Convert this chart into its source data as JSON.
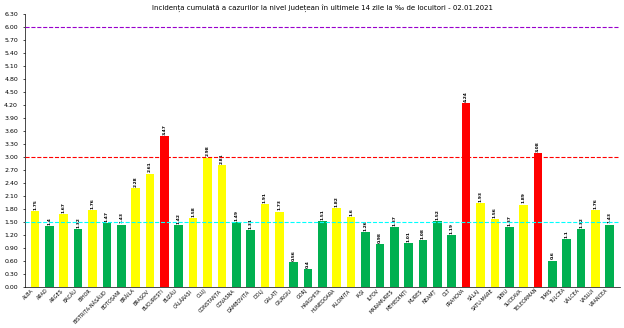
{
  "title": "Incidența cumulată a cazurilor la nivel județean în ultimele 14 zile la ‰ de locuitori - 02.01.2021",
  "categories": [
    "ALBA",
    "ARAD",
    "ARGEȘ",
    "BACĂU",
    "BIHOR",
    "BISTRIȚA-NĂSĂUD",
    "BOTOȘANI",
    "BRĂILA",
    "BRAȘOV",
    "BUCUREȘTI",
    "BUZĂU",
    "CĂLĂRAȘI",
    "CLUJ",
    "CONSTANȚA",
    "COVASNA",
    "DÂMBOVIȚA",
    "DOLJ",
    "GALAȚI",
    "GIURGIU",
    "GORJ",
    "HARGHITA",
    "HUNEDOARA",
    "IALOMIȚA",
    "IAȘI",
    "ILFOV",
    "MARAMUREȘ",
    "MEHEDINȚI",
    "MUREȘ",
    "NEAMȚ",
    "OLT",
    "PRAHOVA",
    "SĂLAJ",
    "SATU-MARE",
    "SIBIU",
    "SUCEAVA",
    "TELEORMAN",
    "TIMIȘ",
    "TULCEA",
    "VÂLCEA",
    "VASLUI",
    "VRANCEA"
  ],
  "bar_colors": [
    "yellow",
    "green",
    "yellow",
    "green",
    "yellow",
    "green",
    "green",
    "yellow",
    "yellow",
    "red",
    "green",
    "yellow",
    "yellow",
    "yellow",
    "green",
    "green",
    "yellow",
    "yellow",
    "green",
    "green",
    "green",
    "yellow",
    "yellow",
    "green",
    "green",
    "green",
    "green",
    "green",
    "green",
    "green",
    "red",
    "yellow",
    "yellow",
    "green",
    "yellow",
    "red",
    "green",
    "green",
    "green",
    "yellow",
    "green"
  ],
  "bar_values": [
    1.75,
    1.4,
    1.67,
    1.32,
    1.76,
    1.47,
    1.43,
    2.28,
    2.61,
    3.47,
    1.42,
    1.58,
    2.98,
    2.81,
    1.49,
    1.31,
    1.91,
    1.73,
    0.56,
    0.4,
    1.51,
    1.82,
    1.6,
    1.26,
    0.98,
    1.37,
    1.01,
    1.08,
    1.52,
    1.19,
    4.24,
    1.93,
    1.56,
    1.37,
    1.89,
    3.08,
    0.6,
    1.1,
    1.32,
    1.76,
    1.43
  ],
  "hline_purple": 6.0,
  "hline_red": 3.0,
  "hline_cyan": 1.5,
  "ylim_max": 6.3,
  "yticks": [
    0.0,
    0.3,
    0.6,
    0.9,
    1.2,
    1.5,
    1.8,
    2.1,
    2.4,
    2.7,
    3.0,
    3.3,
    3.6,
    3.9,
    4.2,
    4.5,
    4.8,
    5.1,
    5.4,
    5.7,
    6.0,
    6.3
  ],
  "color_yellow": "#FFFF00",
  "color_green": "#00B050",
  "color_red": "#FF0000"
}
